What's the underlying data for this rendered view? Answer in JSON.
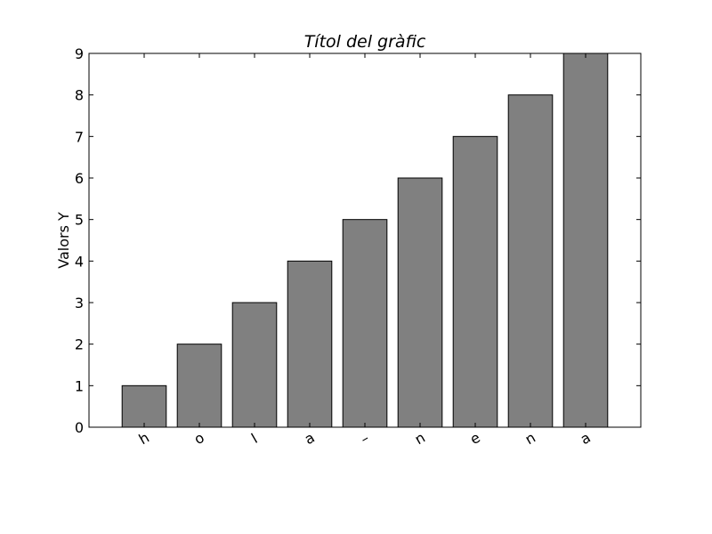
{
  "chart_data": {
    "type": "bar",
    "title": "Títol del gràfic",
    "xlabel": "",
    "ylabel": "Valors Y",
    "categories": [
      "h",
      "o",
      "l",
      "a",
      "–",
      "n",
      "e",
      "n",
      "a"
    ],
    "values": [
      1,
      2,
      3,
      4,
      5,
      6,
      7,
      8,
      9
    ],
    "ylim": [
      0,
      9
    ],
    "yticks": [
      0,
      1,
      2,
      3,
      4,
      5,
      6,
      7,
      8,
      9
    ],
    "xlim": [
      -0.6,
      9.4
    ],
    "bar_color": "#808080",
    "edge_color": "#000000",
    "grid": false,
    "legend": "none"
  }
}
